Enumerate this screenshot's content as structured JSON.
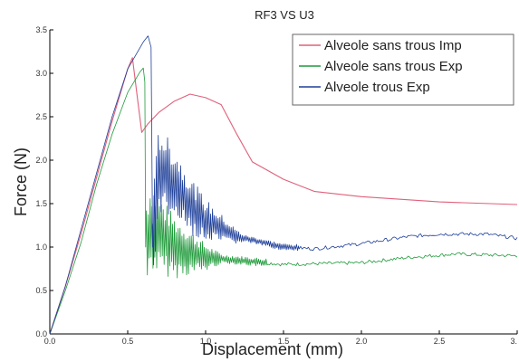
{
  "chart_data": {
    "type": "line",
    "title": "RF3 VS U3",
    "xlabel": "Displacement (mm)",
    "ylabel": "Force (N)",
    "xlim": [
      0.0,
      3.0
    ],
    "ylim": [
      0.0,
      3.5
    ],
    "xticks": [
      "0.0",
      "0.5",
      "1.0",
      "1.5",
      "2.0",
      "2.5",
      "3."
    ],
    "yticks": [
      "0.0",
      "0.5",
      "1.0",
      "1.5",
      "2.0",
      "2.5",
      "3.0",
      "3.5"
    ],
    "legend_position": "top-right",
    "grid": false,
    "series": [
      {
        "name": "Alveole sans trous Imp",
        "color": "#e0607a",
        "noise": null,
        "points": [
          [
            0.0,
            0.0
          ],
          [
            0.1,
            0.55
          ],
          [
            0.2,
            1.15
          ],
          [
            0.3,
            1.8
          ],
          [
            0.4,
            2.45
          ],
          [
            0.5,
            3.05
          ],
          [
            0.53,
            3.18
          ],
          [
            0.56,
            2.75
          ],
          [
            0.59,
            2.32
          ],
          [
            0.63,
            2.42
          ],
          [
            0.7,
            2.55
          ],
          [
            0.8,
            2.68
          ],
          [
            0.9,
            2.76
          ],
          [
            1.0,
            2.72
          ],
          [
            1.1,
            2.64
          ],
          [
            1.2,
            2.3
          ],
          [
            1.3,
            1.98
          ],
          [
            1.5,
            1.78
          ],
          [
            1.7,
            1.64
          ],
          [
            2.0,
            1.58
          ],
          [
            2.5,
            1.52
          ],
          [
            3.0,
            1.49
          ]
        ]
      },
      {
        "name": "Alveole sans trous Exp",
        "color": "#1f9a3a",
        "noise": {
          "from": 0.62,
          "to": 1.4,
          "amp_start": 0.55,
          "amp_end": 0.05,
          "period": 0.012
        },
        "points": [
          [
            0.0,
            0.0
          ],
          [
            0.1,
            0.5
          ],
          [
            0.2,
            1.05
          ],
          [
            0.3,
            1.72
          ],
          [
            0.4,
            2.3
          ],
          [
            0.5,
            2.78
          ],
          [
            0.58,
            3.02
          ],
          [
            0.6,
            3.06
          ],
          [
            0.61,
            2.9
          ],
          [
            0.615,
            1.0
          ],
          [
            0.65,
            1.25
          ],
          [
            0.7,
            1.15
          ],
          [
            0.8,
            1.0
          ],
          [
            1.0,
            0.88
          ],
          [
            1.2,
            0.85
          ],
          [
            1.5,
            0.8
          ],
          [
            2.0,
            0.82
          ],
          [
            2.3,
            0.88
          ],
          [
            2.6,
            0.92
          ],
          [
            3.0,
            0.9
          ]
        ]
      },
      {
        "name": "Alveole trous Exp",
        "color": "#1e3f99",
        "noise": {
          "from": 0.66,
          "to": 1.6,
          "amp_start": 0.55,
          "amp_end": 0.04,
          "period": 0.012
        },
        "points": [
          [
            0.0,
            0.0
          ],
          [
            0.1,
            0.55
          ],
          [
            0.2,
            1.2
          ],
          [
            0.3,
            1.85
          ],
          [
            0.4,
            2.5
          ],
          [
            0.5,
            3.05
          ],
          [
            0.6,
            3.36
          ],
          [
            0.63,
            3.43
          ],
          [
            0.65,
            3.3
          ],
          [
            0.66,
            1.0
          ],
          [
            0.7,
            1.9
          ],
          [
            0.8,
            1.72
          ],
          [
            0.9,
            1.48
          ],
          [
            1.0,
            1.3
          ],
          [
            1.2,
            1.12
          ],
          [
            1.5,
            1.0
          ],
          [
            1.7,
            0.98
          ],
          [
            2.0,
            1.04
          ],
          [
            2.3,
            1.12
          ],
          [
            2.5,
            1.15
          ],
          [
            2.8,
            1.15
          ],
          [
            3.0,
            1.1
          ]
        ]
      }
    ]
  }
}
